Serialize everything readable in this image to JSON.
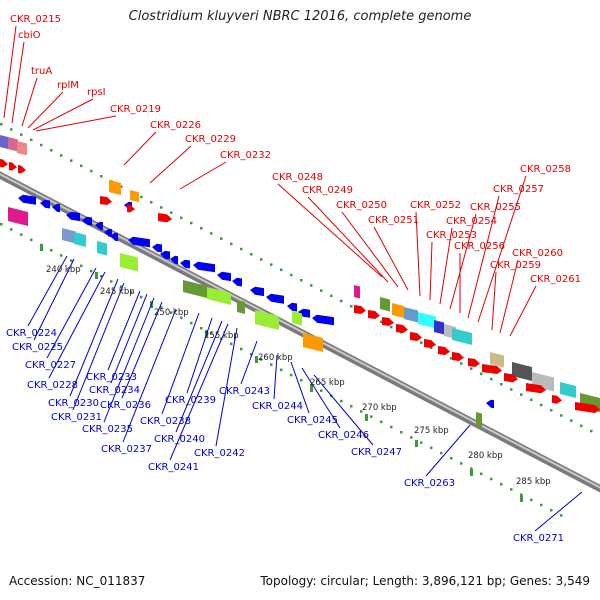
{
  "title": "Clostridium kluyveri NBRC 12016, complete genome",
  "footer": {
    "accession": "Accession: NC_011837",
    "topology": "Topology: circular; Length: 3,896,121 bp; Genes: 3,549"
  },
  "colors": {
    "top_label": "#e00000",
    "bottom_label": "#0000cc",
    "backbone": "#8c8c8c",
    "tick_dot": "#3c9a3c",
    "arrow_red": "#ee0000",
    "arrow_blue": "#0000ee"
  },
  "top_labels": [
    "CKR_0215",
    "cbiO",
    "truA",
    "rplM",
    "rpsI",
    "CKR_0219",
    "CKR_0226",
    "CKR_0229",
    "CKR_0232",
    "CKR_0248",
    "CKR_0249",
    "CKR_0250",
    "CKR_0251",
    "CKR_0252",
    "CKR_0253",
    "CKR_0254",
    "CKR_0255",
    "CKR_0256",
    "CKR_0257",
    "CKR_0258",
    "CKR_0259",
    "CKR_0260",
    "CKR_0261"
  ],
  "bottom_labels": [
    "CKR_0224",
    "CKR_0225",
    "CKR_0227",
    "CKR_0228",
    "CKR_0230",
    "CKR_0231",
    "CKR_0233",
    "CKR_0234",
    "CKR_0235",
    "CKR_0236",
    "CKR_0237",
    "CKR_0238",
    "CKR_0239",
    "CKR_0240",
    "CKR_0241",
    "CKR_0242",
    "CKR_0243",
    "CKR_0244",
    "CKR_0245",
    "CKR_0246",
    "CKR_0247",
    "CKR_0263",
    "CKR_0271"
  ],
  "scale_labels": [
    "240 kbp",
    "245 kbp",
    "250 kbp",
    "255 kbp",
    "260 kbp",
    "265 kbp",
    "270 kbp",
    "275 kbp",
    "280 kbp",
    "285 kbp"
  ]
}
